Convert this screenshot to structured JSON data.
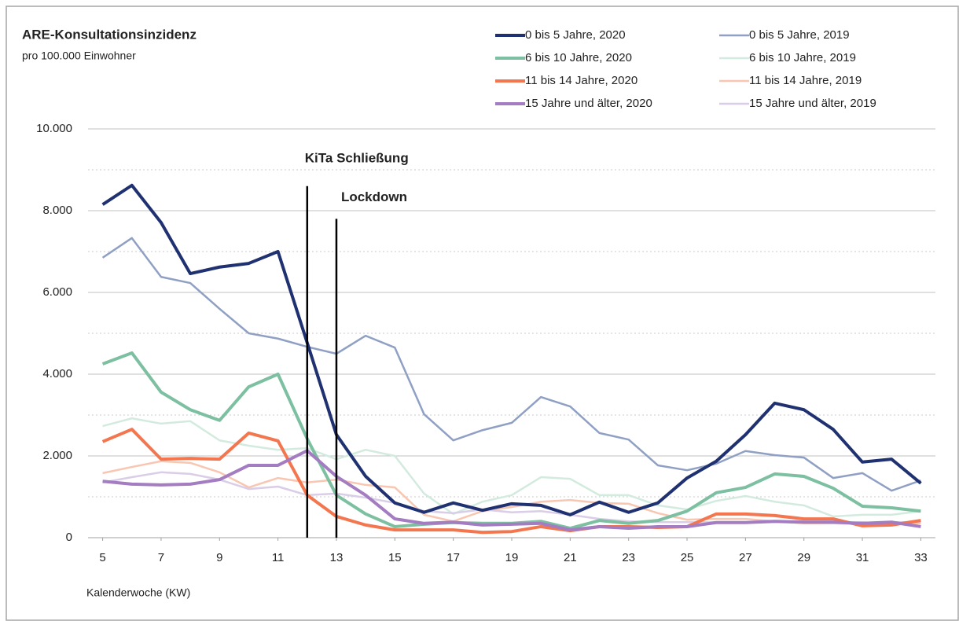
{
  "chart_data": {
    "type": "line",
    "title": "ARE-Konsultationsinzidenz",
    "subtitle": "pro 100.000 Einwohner",
    "x_label": "Kalenderwoche (KW)",
    "x": [
      5,
      6,
      7,
      8,
      9,
      10,
      11,
      12,
      13,
      14,
      15,
      16,
      17,
      18,
      19,
      20,
      21,
      22,
      23,
      24,
      25,
      26,
      27,
      28,
      29,
      30,
      31,
      32,
      33
    ],
    "xlim": [
      4.5,
      33.5
    ],
    "xticks": [
      5,
      7,
      9,
      11,
      13,
      15,
      17,
      19,
      21,
      23,
      25,
      27,
      29,
      31,
      33
    ],
    "ylim": [
      0,
      10000
    ],
    "yticks": [
      0,
      {
        "value": 2000,
        "label": "2.000"
      },
      {
        "value": 4000,
        "label": "4.000"
      },
      {
        "value": 6000,
        "label": "6.000"
      },
      {
        "value": 8000,
        "label": "8.000"
      },
      {
        "value": 10000,
        "label": "10.000"
      }
    ],
    "minor_yticks": [
      1000,
      3000,
      5000,
      7000,
      9000
    ],
    "grid": true,
    "legend": "top right",
    "annotations": [
      {
        "text": "KiTa Schließung",
        "x": 12,
        "y": 8600
      },
      {
        "text": "Lockdown",
        "x": 13,
        "y": 7800
      }
    ],
    "series": [
      {
        "name": "0 bis 5 Jahre, 2020",
        "color": "#1f3170",
        "values": [
          8150,
          8620,
          7710,
          6460,
          6620,
          6710,
          7000,
          4770,
          2520,
          1500,
          850,
          620,
          850,
          670,
          830,
          790,
          560,
          870,
          620,
          850,
          1460,
          1870,
          2520,
          3290,
          3130,
          2650,
          1850,
          1920,
          1330
        ]
      },
      {
        "name": "0 bis 5 Jahre, 2019",
        "color": "#8fa0c4",
        "values": [
          6850,
          7330,
          6380,
          6230,
          5600,
          5000,
          4870,
          4670,
          4500,
          4940,
          4650,
          3020,
          2380,
          2630,
          2810,
          3440,
          3210,
          2560,
          2400,
          1770,
          1650,
          1810,
          2120,
          2020,
          1960,
          1460,
          1580,
          1150,
          1400
        ]
      },
      {
        "name": "6 bis 10 Jahre, 2020",
        "color": "#7cc0a1",
        "values": [
          4250,
          4520,
          3560,
          3130,
          2870,
          3690,
          4000,
          2420,
          1040,
          580,
          270,
          330,
          370,
          350,
          350,
          400,
          230,
          420,
          350,
          420,
          650,
          1100,
          1230,
          1560,
          1500,
          1210,
          770,
          730,
          650
        ]
      },
      {
        "name": "6 bis 10 Jahre, 2019",
        "color": "#d3ebdf",
        "values": [
          2730,
          2920,
          2790,
          2850,
          2380,
          2250,
          2150,
          2190,
          1920,
          2150,
          2000,
          1080,
          580,
          880,
          1040,
          1480,
          1440,
          1040,
          1040,
          790,
          690,
          900,
          1020,
          880,
          790,
          520,
          560,
          560,
          650
        ]
      },
      {
        "name": "11 bis 14 Jahre, 2020",
        "color": "#f4764f",
        "values": [
          2350,
          2650,
          1920,
          1940,
          1920,
          2560,
          2370,
          1040,
          520,
          310,
          190,
          190,
          190,
          130,
          150,
          270,
          170,
          270,
          270,
          250,
          270,
          580,
          580,
          540,
          460,
          460,
          290,
          310,
          420
        ]
      },
      {
        "name": "11 bis 14 Jahre, 2019",
        "color": "#f8c6b1",
        "values": [
          1580,
          1730,
          1870,
          1830,
          1600,
          1230,
          1460,
          1350,
          1420,
          1290,
          1230,
          560,
          400,
          650,
          750,
          880,
          920,
          850,
          830,
          600,
          440,
          460,
          460,
          400,
          350,
          350,
          380,
          330,
          350
        ]
      },
      {
        "name": "15 Jahre und älter, 2020",
        "color": "#a37cc1",
        "values": [
          1380,
          1310,
          1290,
          1310,
          1420,
          1770,
          1770,
          2130,
          1500,
          1040,
          460,
          350,
          380,
          310,
          330,
          350,
          190,
          270,
          230,
          270,
          270,
          370,
          370,
          400,
          380,
          380,
          350,
          380,
          270
        ]
      },
      {
        "name": "15 Jahre und älter, 2019",
        "color": "#d9cde7",
        "values": [
          1350,
          1480,
          1600,
          1560,
          1420,
          1190,
          1250,
          1040,
          1080,
          980,
          850,
          650,
          600,
          690,
          620,
          650,
          560,
          460,
          400,
          380,
          380,
          380,
          380,
          400,
          380,
          350,
          330,
          380,
          380
        ]
      }
    ]
  }
}
